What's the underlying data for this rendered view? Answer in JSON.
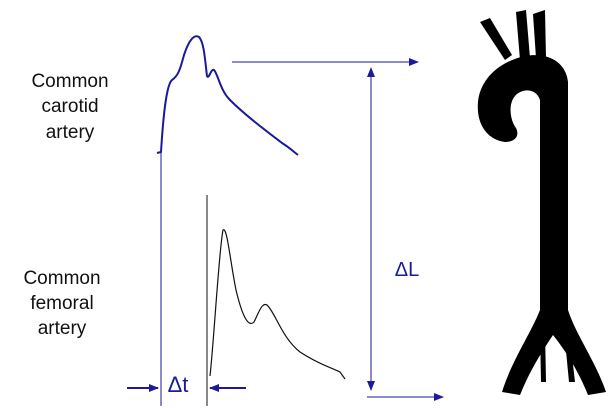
{
  "carotid_label": [
    "Common",
    "carotid",
    "artery"
  ],
  "femoral_label": [
    "Common",
    "femoral",
    "artery"
  ],
  "delta_length": "ΔL",
  "delta_time": "Δt"
}
